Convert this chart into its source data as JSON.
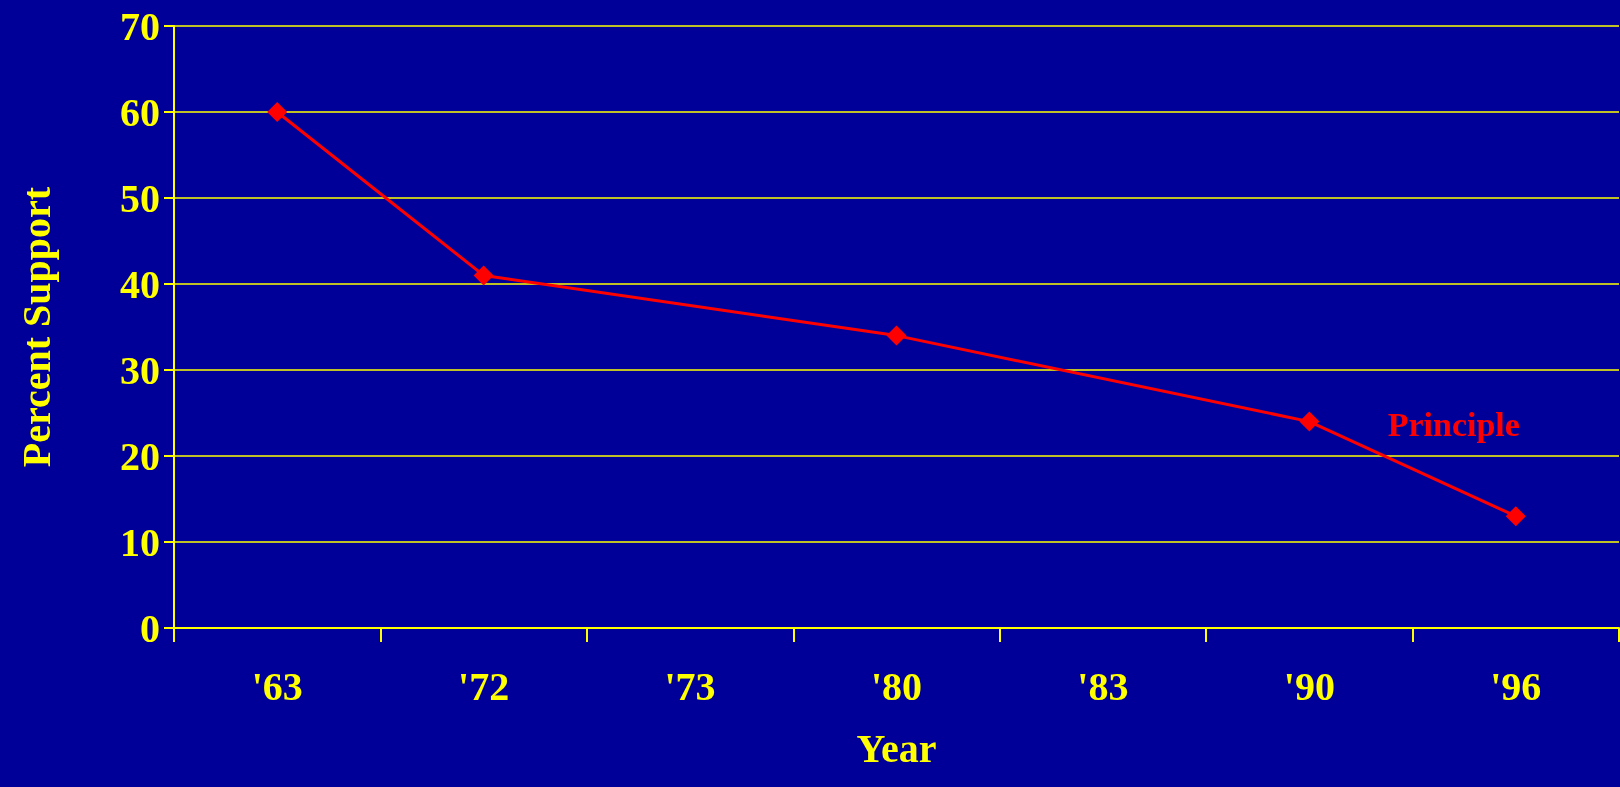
{
  "chart_data": {
    "type": "line",
    "xlabel": "Year",
    "ylabel": "Percent Support",
    "categories": [
      "'63",
      "'72",
      "'73",
      "'80",
      "'83",
      "'90",
      "'96"
    ],
    "series": [
      {
        "name": "Principle",
        "color": "#ff0000",
        "values": [
          60,
          41,
          null,
          34,
          null,
          24,
          13
        ]
      }
    ],
    "ylim": [
      0,
      70
    ],
    "yticks": [
      0,
      10,
      20,
      30,
      40,
      50,
      60,
      70
    ],
    "grid": "y",
    "legend": false,
    "marker": "diamond",
    "line_style": "solid"
  }
}
